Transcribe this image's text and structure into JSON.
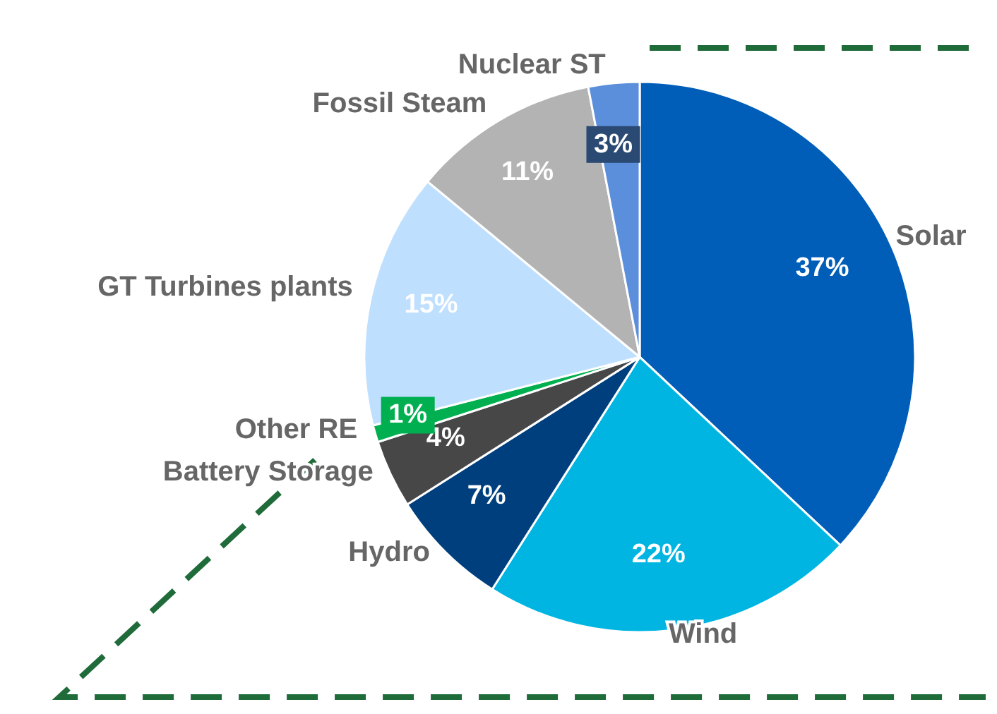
{
  "chart_data": {
    "type": "pie",
    "categories": [
      "Solar",
      "Wind",
      "Hydro",
      "Battery Storage",
      "Other RE",
      "GT Turbines plants",
      "Fossil Steam",
      "Nuclear ST"
    ],
    "values": [
      37,
      22,
      7,
      4,
      1,
      15,
      11,
      3
    ],
    "value_labels": [
      "37%",
      "22%",
      "7%",
      "4%",
      "1%",
      "15%",
      "11%",
      "3%"
    ],
    "colors": [
      "#005eb8",
      "#00b5e2",
      "#003f7d",
      "#474747",
      "#00b050",
      "#bfdfff",
      "#b3b3b3",
      "#5b8fdb"
    ]
  }
}
